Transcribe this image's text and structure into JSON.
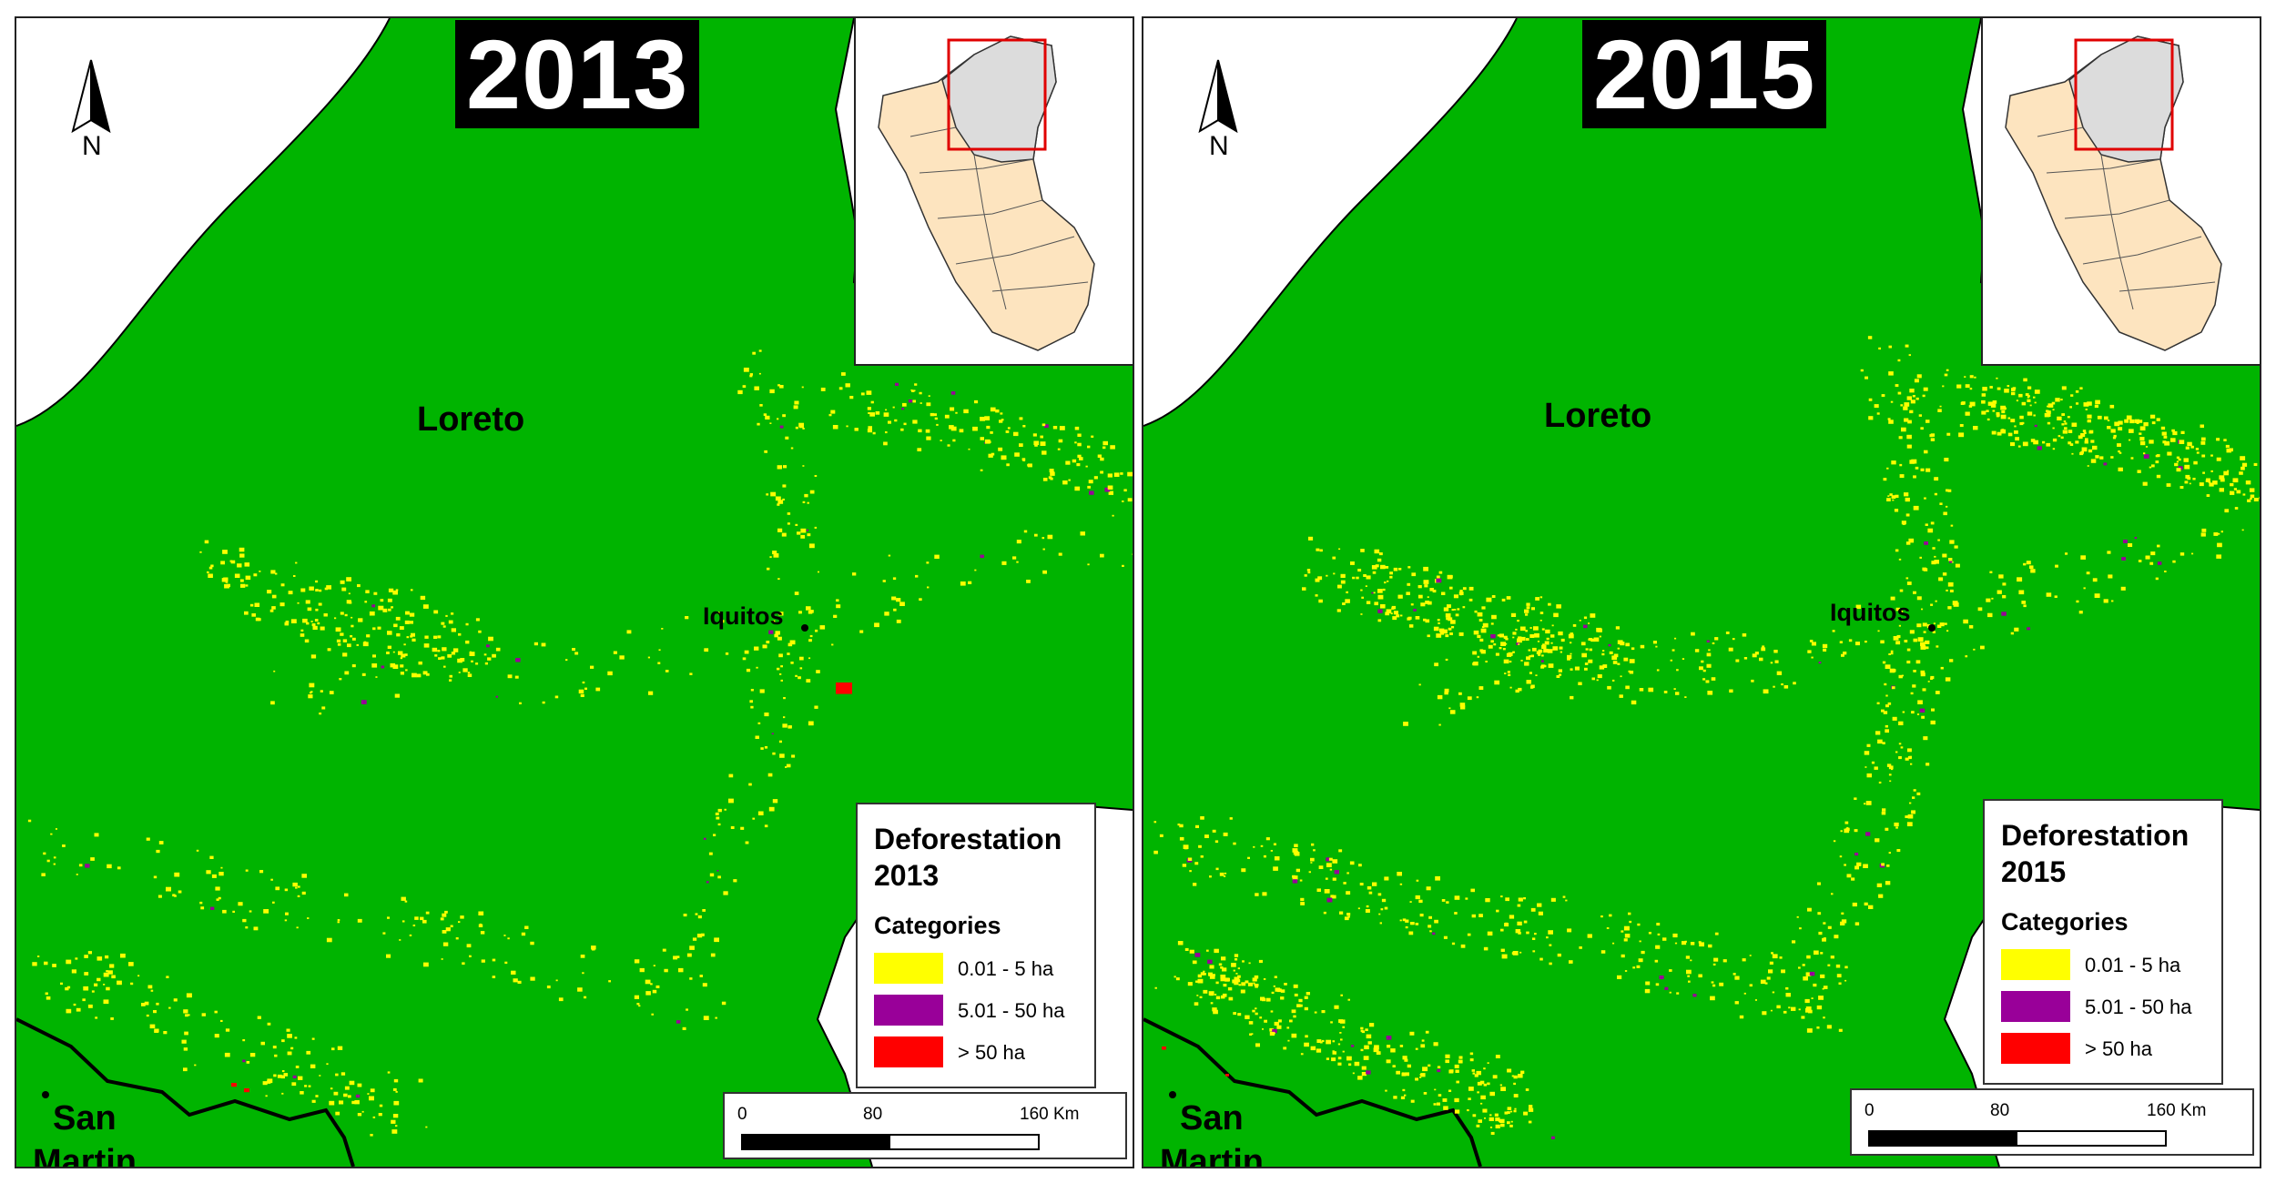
{
  "colors": {
    "forest": "#00b400",
    "deforest_small": "#ffff00",
    "deforest_medium": "#990099",
    "deforest_large": "#ff0000",
    "inset_region": "#fde4bf",
    "inset_focus": "#dcdcdc",
    "inset_box": "#e00000"
  },
  "legend_categories": [
    {
      "label": "0.01 - 5 ha",
      "color": "#ffff00"
    },
    {
      "label": "5.01 - 50 ha",
      "color": "#990099"
    },
    {
      "label": "> 50 ha",
      "color": "#ff0000"
    }
  ],
  "panels": [
    {
      "year": "2013",
      "place_labels": {
        "region": "Loreto",
        "city": "Iquitos",
        "neighbor_line1": "San",
        "neighbor_line2": "Martin"
      },
      "north_label": "N",
      "legend": {
        "title_line1": "Deforestation",
        "title_line2": "2013",
        "categories_heading": "Categories"
      },
      "scale": {
        "tick_0": "0",
        "tick_1": "80",
        "tick_2": "160 Km"
      }
    },
    {
      "year": "2015",
      "place_labels": {
        "region": "Loreto",
        "city": "Iquitos",
        "neighbor_line1": "San",
        "neighbor_line2": "Martin"
      },
      "north_label": "N",
      "legend": {
        "title_line1": "Deforestation",
        "title_line2": "2015",
        "categories_heading": "Categories"
      },
      "scale": {
        "tick_0": "0",
        "tick_1": "80",
        "tick_2": "160 Km"
      }
    }
  ]
}
